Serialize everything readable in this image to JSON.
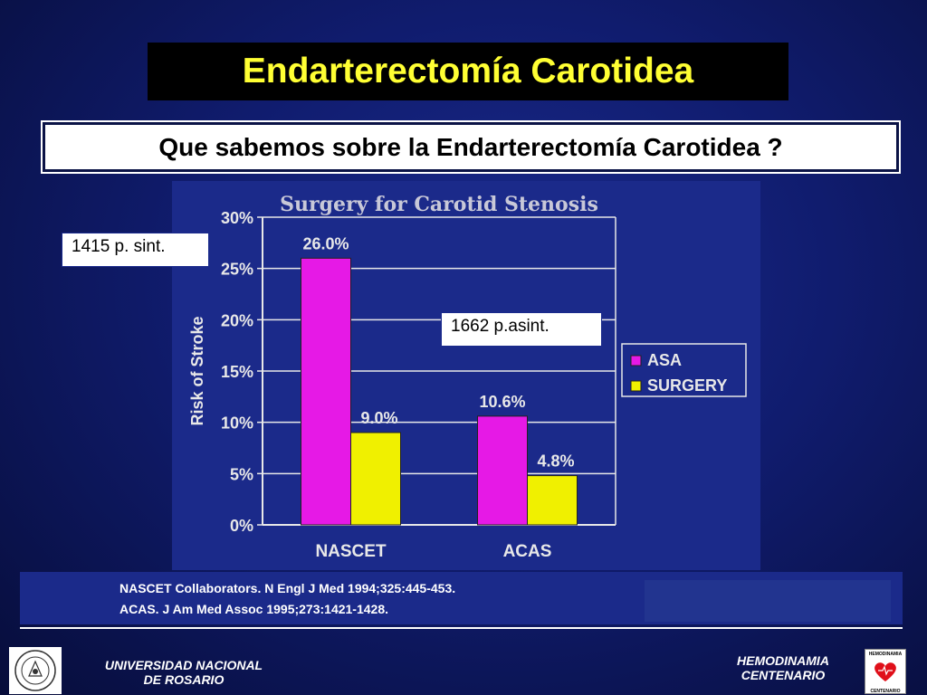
{
  "slide": {
    "title": "Endarterectomía Carotidea",
    "subtitle": "Que sabemos sobre la Endarterectomía Carotidea ?",
    "note_symptomatic": "1415 p. sint.",
    "note_asymptomatic": "1662 p.asint.",
    "references": [
      "NASCET Collaborators. N Engl J Med 1994;325:445-453.",
      "ACAS. J Am Med Assoc 1995;273:1421-1428."
    ],
    "footer_left_line1": "UNIVERSIDAD NACIONAL",
    "footer_left_line2": "DE ROSARIO",
    "footer_right_line1": "HEMODINAMIA",
    "footer_right_line2": "CENTENARIO",
    "logo_right_top": "HEMODINAMIA",
    "logo_right_bottom": "CENTENARIO",
    "logo_left_text": "UNIVERSIDAD NACIONAL DE ROSARIO"
  },
  "chart_data": {
    "type": "bar",
    "title": "Surgery for Carotid Stenosis",
    "ylabel": "Risk of Stroke",
    "xlabel": "",
    "categories": [
      "NASCET",
      "ACAS"
    ],
    "series": [
      {
        "name": "ASA",
        "values": [
          26.0,
          10.6
        ],
        "labels": [
          "26.0%",
          "10.6%"
        ],
        "color": "#e619e6"
      },
      {
        "name": "SURGERY",
        "values": [
          9.0,
          4.8
        ],
        "labels": [
          "9.0%",
          "4.8%"
        ],
        "color": "#f0f000"
      }
    ],
    "ylim": [
      0,
      30
    ],
    "yticks": [
      "0%",
      "5%",
      "10%",
      "15%",
      "20%",
      "25%",
      "30%"
    ],
    "grid": true,
    "legend": "right",
    "background": "#1b2a8a"
  }
}
